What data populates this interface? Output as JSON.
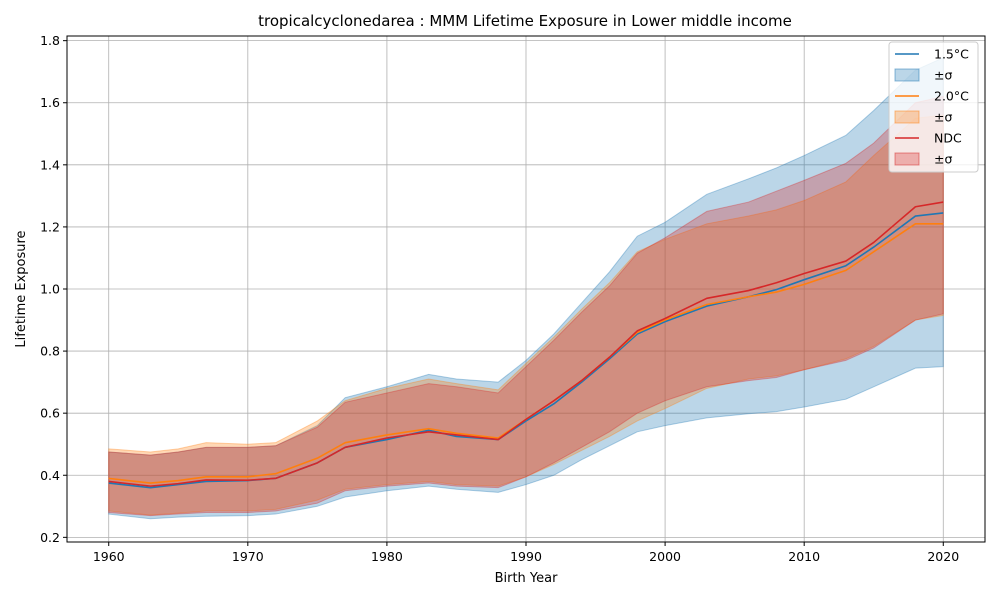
{
  "chart_data": {
    "type": "line",
    "title": "tropicalcyclonedarea : MMM Lifetime Exposure in Lower middle income",
    "xlabel": "Birth Year",
    "ylabel": "Lifetime Exposure",
    "xlim": [
      1957,
      2023
    ],
    "ylim": [
      0.185,
      1.815
    ],
    "xticks": [
      1960,
      1970,
      1980,
      1990,
      2000,
      2010,
      2020
    ],
    "xtick_labels": [
      "1960",
      "1970",
      "1980",
      "1990",
      "2000",
      "2010",
      "2020"
    ],
    "yticks": [
      0.2,
      0.4,
      0.6,
      0.8,
      1.0,
      1.2,
      1.4,
      1.6,
      1.8
    ],
    "ytick_labels": [
      "0.2",
      "0.4",
      "0.6",
      "0.8",
      "1.0",
      "1.2",
      "1.4",
      "1.6",
      "1.8"
    ],
    "grid": true,
    "legend_position": "top-right",
    "x": [
      1960,
      1963,
      1965,
      1967,
      1970,
      1972,
      1975,
      1977,
      1980,
      1983,
      1985,
      1988,
      1990,
      1992,
      1994,
      1996,
      1998,
      2000,
      2003,
      2006,
      2008,
      2010,
      2013,
      2015,
      2018,
      2020
    ],
    "series": [
      {
        "name": "1.5°C",
        "band_label": "±σ",
        "color": "#1f77b4",
        "values": [
          0.375,
          0.36,
          0.37,
          0.38,
          0.383,
          0.39,
          0.44,
          0.49,
          0.515,
          0.545,
          0.525,
          0.515,
          0.575,
          0.63,
          0.7,
          0.775,
          0.855,
          0.895,
          0.945,
          0.975,
          0.998,
          1.03,
          1.075,
          1.135,
          1.235,
          1.245
        ],
        "lower": [
          0.275,
          0.26,
          0.265,
          0.268,
          0.27,
          0.275,
          0.3,
          0.33,
          0.35,
          0.365,
          0.355,
          0.345,
          0.37,
          0.4,
          0.45,
          0.495,
          0.54,
          0.56,
          0.585,
          0.598,
          0.605,
          0.62,
          0.645,
          0.685,
          0.745,
          0.75
        ],
        "upper": [
          0.475,
          0.465,
          0.475,
          0.49,
          0.49,
          0.495,
          0.56,
          0.65,
          0.685,
          0.725,
          0.71,
          0.7,
          0.77,
          0.855,
          0.955,
          1.055,
          1.17,
          1.215,
          1.305,
          1.355,
          1.39,
          1.43,
          1.495,
          1.575,
          1.705,
          1.745
        ]
      },
      {
        "name": "2.0°C",
        "band_label": "±σ",
        "color": "#ff7f0e",
        "values": [
          0.39,
          0.375,
          0.383,
          0.395,
          0.395,
          0.405,
          0.455,
          0.505,
          0.53,
          0.55,
          0.535,
          0.52,
          0.58,
          0.64,
          0.705,
          0.78,
          0.86,
          0.9,
          0.95,
          0.975,
          0.99,
          1.015,
          1.06,
          1.12,
          1.21,
          1.21
        ],
        "lower": [
          0.285,
          0.272,
          0.278,
          0.285,
          0.285,
          0.29,
          0.32,
          0.355,
          0.37,
          0.38,
          0.37,
          0.365,
          0.395,
          0.435,
          0.48,
          0.525,
          0.575,
          0.615,
          0.68,
          0.71,
          0.72,
          0.74,
          0.775,
          0.815,
          0.9,
          0.915
        ],
        "upper": [
          0.485,
          0.475,
          0.485,
          0.505,
          0.5,
          0.505,
          0.575,
          0.64,
          0.68,
          0.71,
          0.695,
          0.675,
          0.76,
          0.845,
          0.935,
          1.02,
          1.12,
          1.16,
          1.21,
          1.235,
          1.255,
          1.285,
          1.345,
          1.43,
          1.55,
          1.56
        ]
      },
      {
        "name": "NDC",
        "band_label": "±σ",
        "color": "#d62728",
        "values": [
          0.38,
          0.365,
          0.373,
          0.385,
          0.384,
          0.39,
          0.44,
          0.49,
          0.52,
          0.54,
          0.53,
          0.515,
          0.58,
          0.64,
          0.705,
          0.78,
          0.865,
          0.905,
          0.97,
          0.995,
          1.02,
          1.05,
          1.09,
          1.15,
          1.265,
          1.28
        ],
        "lower": [
          0.28,
          0.27,
          0.275,
          0.28,
          0.28,
          0.285,
          0.31,
          0.35,
          0.365,
          0.375,
          0.365,
          0.36,
          0.395,
          0.44,
          0.49,
          0.54,
          0.6,
          0.64,
          0.685,
          0.705,
          0.715,
          0.74,
          0.77,
          0.81,
          0.9,
          0.92
        ],
        "upper": [
          0.475,
          0.465,
          0.475,
          0.49,
          0.49,
          0.495,
          0.555,
          0.635,
          0.665,
          0.695,
          0.685,
          0.665,
          0.75,
          0.835,
          0.925,
          1.01,
          1.115,
          1.165,
          1.25,
          1.28,
          1.315,
          1.35,
          1.405,
          1.47,
          1.6,
          1.62
        ]
      }
    ]
  }
}
